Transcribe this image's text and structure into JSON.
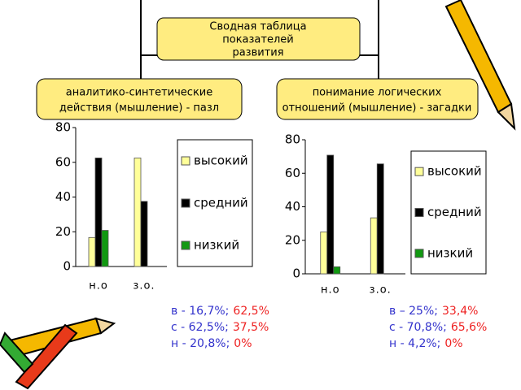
{
  "header": {
    "title": [
      "Сводная таблица",
      "показателей",
      "развития"
    ],
    "left": [
      "аналитико-синтетические",
      "действия (мышление) - пазл"
    ],
    "right": [
      "понимание логических",
      "отношений (мышление) - загадки"
    ]
  },
  "chart_data": [
    {
      "type": "bar",
      "categories": [
        "н.о",
        "з.о."
      ],
      "ylim": [
        0,
        80
      ],
      "yticks": [
        0,
        20,
        40,
        60,
        80
      ],
      "series": [
        {
          "name": "высокий",
          "color": "#ffff99",
          "values": [
            16.7,
            62.5
          ]
        },
        {
          "name": "средний",
          "color": "#000000",
          "values": [
            62.5,
            37.5
          ]
        },
        {
          "name": "низкий",
          "color": "#119911",
          "values": [
            20.8,
            0
          ]
        }
      ],
      "notes": [
        [
          "в - 16,7%;",
          "62,5%"
        ],
        [
          "с - 62,5%;",
          "37,5%"
        ],
        [
          "н - 20,8%;",
          "0%"
        ]
      ]
    },
    {
      "type": "bar",
      "categories": [
        "н.о",
        "з.о."
      ],
      "ylim": [
        0,
        80
      ],
      "yticks": [
        0,
        20,
        40,
        60,
        80
      ],
      "series": [
        {
          "name": "высокий",
          "color": "#ffff99",
          "values": [
            25,
            33.4
          ]
        },
        {
          "name": "средний",
          "color": "#000000",
          "values": [
            70.8,
            65.6
          ]
        },
        {
          "name": "низкий",
          "color": "#119911",
          "values": [
            4.2,
            0
          ]
        }
      ],
      "notes": [
        [
          "в – 25%;",
          "33,4%"
        ],
        [
          "с - 70,8%;",
          "65,6%"
        ],
        [
          "н - 4,2%;",
          "0%"
        ]
      ]
    }
  ]
}
